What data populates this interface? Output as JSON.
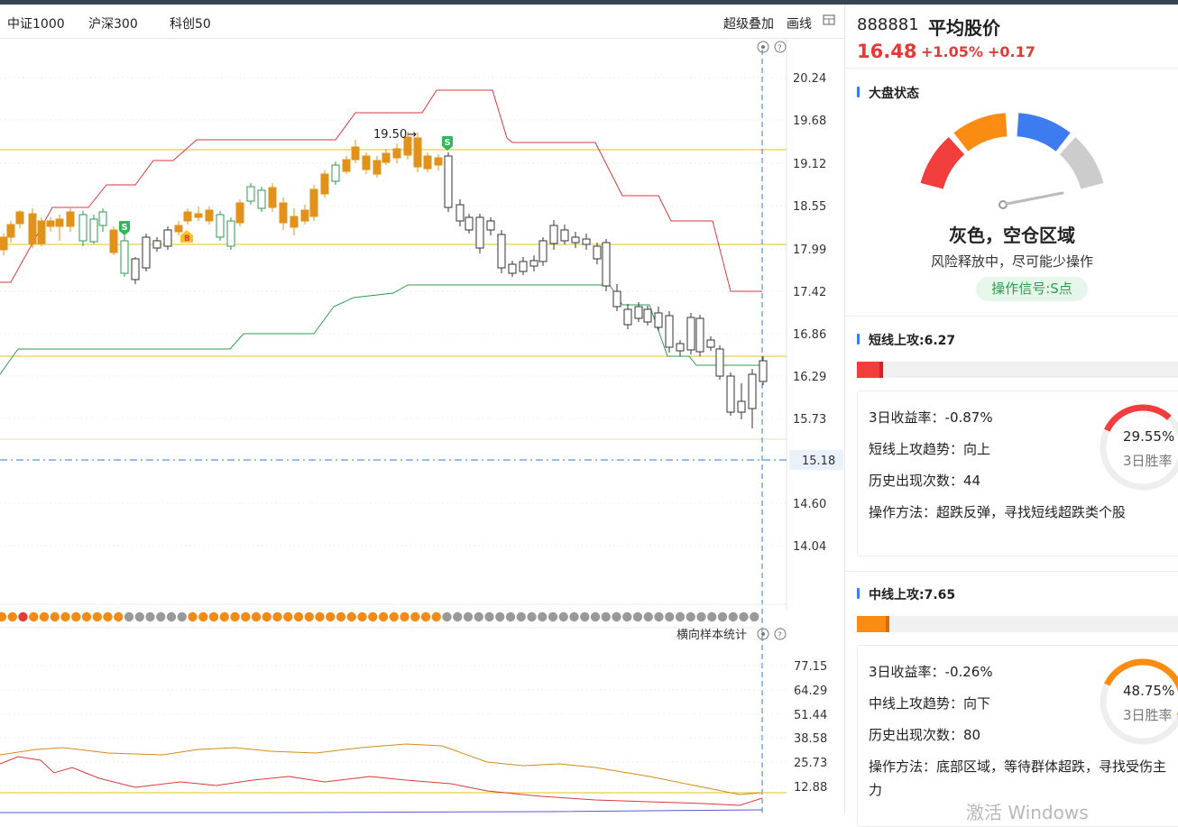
{
  "tabs": [
    "中证1000",
    "沪深300",
    "科创50"
  ],
  "toolbar": {
    "overlay": "超级叠加",
    "draw": "画线",
    "layout_icon": "grid-layout-icon"
  },
  "main_chart": {
    "y_ticks": [
      "20.24",
      "19.68",
      "19.12",
      "18.55",
      "17.99",
      "17.42",
      "16.86",
      "16.29",
      "15.73",
      "14.60",
      "14.04"
    ],
    "current_price_tag": "15.18",
    "high_annotation": "19.50→",
    "signal_markers": [
      "S",
      "S",
      "B"
    ]
  },
  "sub_chart": {
    "title": "横向样本统计",
    "y_ticks": [
      "77.15",
      "64.29",
      "51.44",
      "38.58",
      "25.73",
      "12.88"
    ]
  },
  "index": {
    "code": "888881",
    "name": "平均股价",
    "price": "16.48",
    "pct_change": "+1.05%",
    "change": "+0.17"
  },
  "market_state": {
    "title": "大盘状态",
    "status": "灰色，空仓区域",
    "description": "风险释放中，尽可能少操作",
    "signal": "操作信号:S点",
    "gauge_colors": [
      "#f23d3d",
      "#fb8c13",
      "#3d7bf0",
      "#cccccc"
    ]
  },
  "short_attack": {
    "title": "短线上攻:6.27",
    "progress": 0.0627,
    "color": "#f23d3d",
    "return_3d": "3日收益率：-0.87%",
    "trend": "短线上攻趋势：向上",
    "occurrences": "历史出现次数：44",
    "method": "操作方法：超跌反弹，寻找短线超跌类个股",
    "win_rate": "29.55%",
    "win_rate_label": "3日胜率",
    "win_rate_value": 0.2955
  },
  "mid_attack": {
    "title": "中线上攻:7.65",
    "progress": 0.0765,
    "color": "#fb8c13",
    "return_3d": "3日收益率：-0.26%",
    "trend": "中线上攻趋势：向下",
    "occurrences": "历史出现次数：80",
    "method_line1": "操作方法：底部区域，等待群体超跌，寻找受伤主",
    "method_line2": "力",
    "win_rate": "48.75%",
    "win_rate_label": "3日胜率",
    "win_rate_value": 0.4875
  },
  "watermark": "激活 Windows"
}
